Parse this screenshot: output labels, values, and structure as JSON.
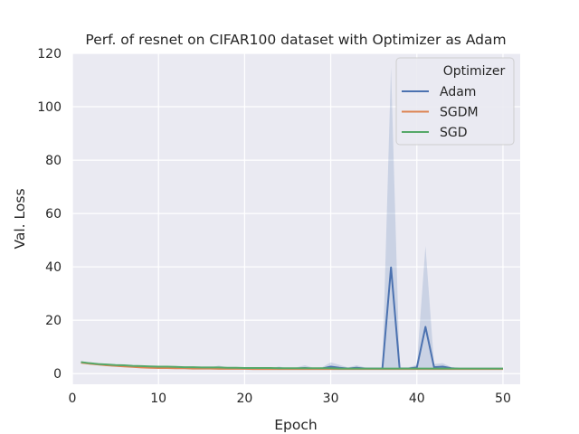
{
  "chart_data": {
    "type": "line",
    "title": "Perf. of resnet on CIFAR100 dataset with Optimizer as Adam",
    "xlabel": "Epoch",
    "ylabel": "Val. Loss",
    "xlim": [
      0,
      52
    ],
    "ylim": [
      -4,
      120
    ],
    "xticks": [
      0,
      10,
      20,
      30,
      40,
      50
    ],
    "yticks": [
      0,
      20,
      40,
      60,
      80,
      100,
      120
    ],
    "xtick_labels": [
      "0",
      "10",
      "20",
      "30",
      "40",
      "50"
    ],
    "ytick_labels": [
      "0",
      "20",
      "40",
      "60",
      "80",
      "100",
      "120"
    ],
    "grid": true,
    "legend": {
      "title": "Optimizer",
      "placement": "top-right"
    },
    "x": [
      1,
      2,
      3,
      4,
      5,
      6,
      7,
      8,
      9,
      10,
      11,
      12,
      13,
      14,
      15,
      16,
      17,
      18,
      19,
      20,
      21,
      22,
      23,
      24,
      25,
      26,
      27,
      28,
      29,
      30,
      31,
      32,
      33,
      34,
      35,
      36,
      37,
      38,
      39,
      40,
      41,
      42,
      43,
      44,
      45,
      46,
      47,
      48,
      49,
      50
    ],
    "series": [
      {
        "name": "Adam",
        "color": "#4c72b0",
        "values": [
          4.2,
          3.8,
          3.5,
          3.2,
          3.0,
          2.8,
          2.7,
          2.5,
          2.4,
          2.3,
          2.4,
          2.2,
          2.2,
          2.1,
          2.1,
          2.0,
          2.1,
          2.0,
          2.0,
          1.9,
          1.9,
          2.0,
          1.8,
          2.0,
          1.8,
          1.9,
          2.1,
          1.8,
          1.9,
          2.6,
          2.2,
          1.9,
          2.2,
          1.9,
          1.9,
          1.9,
          39.8,
          1.9,
          1.9,
          2.3,
          17.5,
          2.4,
          2.6,
          2.0,
          1.8,
          1.8,
          1.8,
          1.8,
          1.8,
          1.8
        ],
        "band_upper": [
          4.6,
          4.1,
          3.8,
          3.5,
          3.3,
          3.1,
          3.0,
          2.8,
          2.7,
          2.6,
          2.7,
          2.5,
          2.5,
          2.4,
          2.4,
          2.3,
          3.0,
          2.3,
          2.3,
          2.2,
          2.2,
          2.4,
          2.1,
          2.6,
          2.1,
          2.3,
          3.1,
          2.2,
          2.4,
          4.2,
          3.3,
          2.3,
          3.1,
          2.3,
          2.2,
          2.2,
          114.8,
          2.3,
          2.3,
          3.3,
          47.8,
          3.6,
          3.9,
          2.4,
          2.1,
          2.1,
          2.1,
          2.1,
          2.1,
          2.1
        ],
        "band_lower": [
          3.8,
          3.5,
          3.2,
          2.9,
          2.7,
          2.5,
          2.4,
          2.2,
          2.1,
          2.0,
          2.1,
          1.9,
          1.9,
          1.8,
          1.8,
          1.7,
          1.6,
          1.7,
          1.7,
          1.6,
          1.6,
          1.6,
          1.5,
          1.5,
          1.5,
          1.5,
          1.5,
          1.4,
          1.4,
          1.5,
          1.5,
          1.5,
          1.5,
          1.5,
          1.6,
          1.6,
          1.6,
          1.5,
          1.5,
          1.5,
          1.5,
          1.5,
          1.5,
          1.6,
          1.5,
          1.5,
          1.5,
          1.5,
          1.5,
          1.5
        ]
      },
      {
        "name": "SGDM",
        "color": "#dd8452",
        "values": [
          4.1,
          3.7,
          3.4,
          3.1,
          2.9,
          2.7,
          2.5,
          2.3,
          2.2,
          2.1,
          2.1,
          2.0,
          2.0,
          1.9,
          1.9,
          1.9,
          1.8,
          1.8,
          1.8,
          1.8,
          1.7,
          1.7,
          1.7,
          1.7,
          1.7,
          1.7,
          1.7,
          1.7,
          1.7,
          1.7,
          1.7,
          1.7,
          1.7,
          1.7,
          1.7,
          1.7,
          1.7,
          1.7,
          1.7,
          1.7,
          1.7,
          1.7,
          1.7,
          1.7,
          1.7,
          1.7,
          1.7,
          1.7,
          1.7,
          1.7
        ]
      },
      {
        "name": "SGD",
        "color": "#55a868",
        "values": [
          4.3,
          3.9,
          3.6,
          3.4,
          3.2,
          3.1,
          2.9,
          2.8,
          2.7,
          2.6,
          2.6,
          2.5,
          2.4,
          2.4,
          2.3,
          2.3,
          2.3,
          2.2,
          2.2,
          2.1,
          2.1,
          2.1,
          2.1,
          2.0,
          2.0,
          2.0,
          2.0,
          2.0,
          2.0,
          2.0,
          1.9,
          1.9,
          1.9,
          1.9,
          1.9,
          1.9,
          1.9,
          1.9,
          1.9,
          1.9,
          1.9,
          1.9,
          1.9,
          1.9,
          1.9,
          1.9,
          1.9,
          1.9,
          1.9,
          1.9
        ]
      }
    ]
  }
}
